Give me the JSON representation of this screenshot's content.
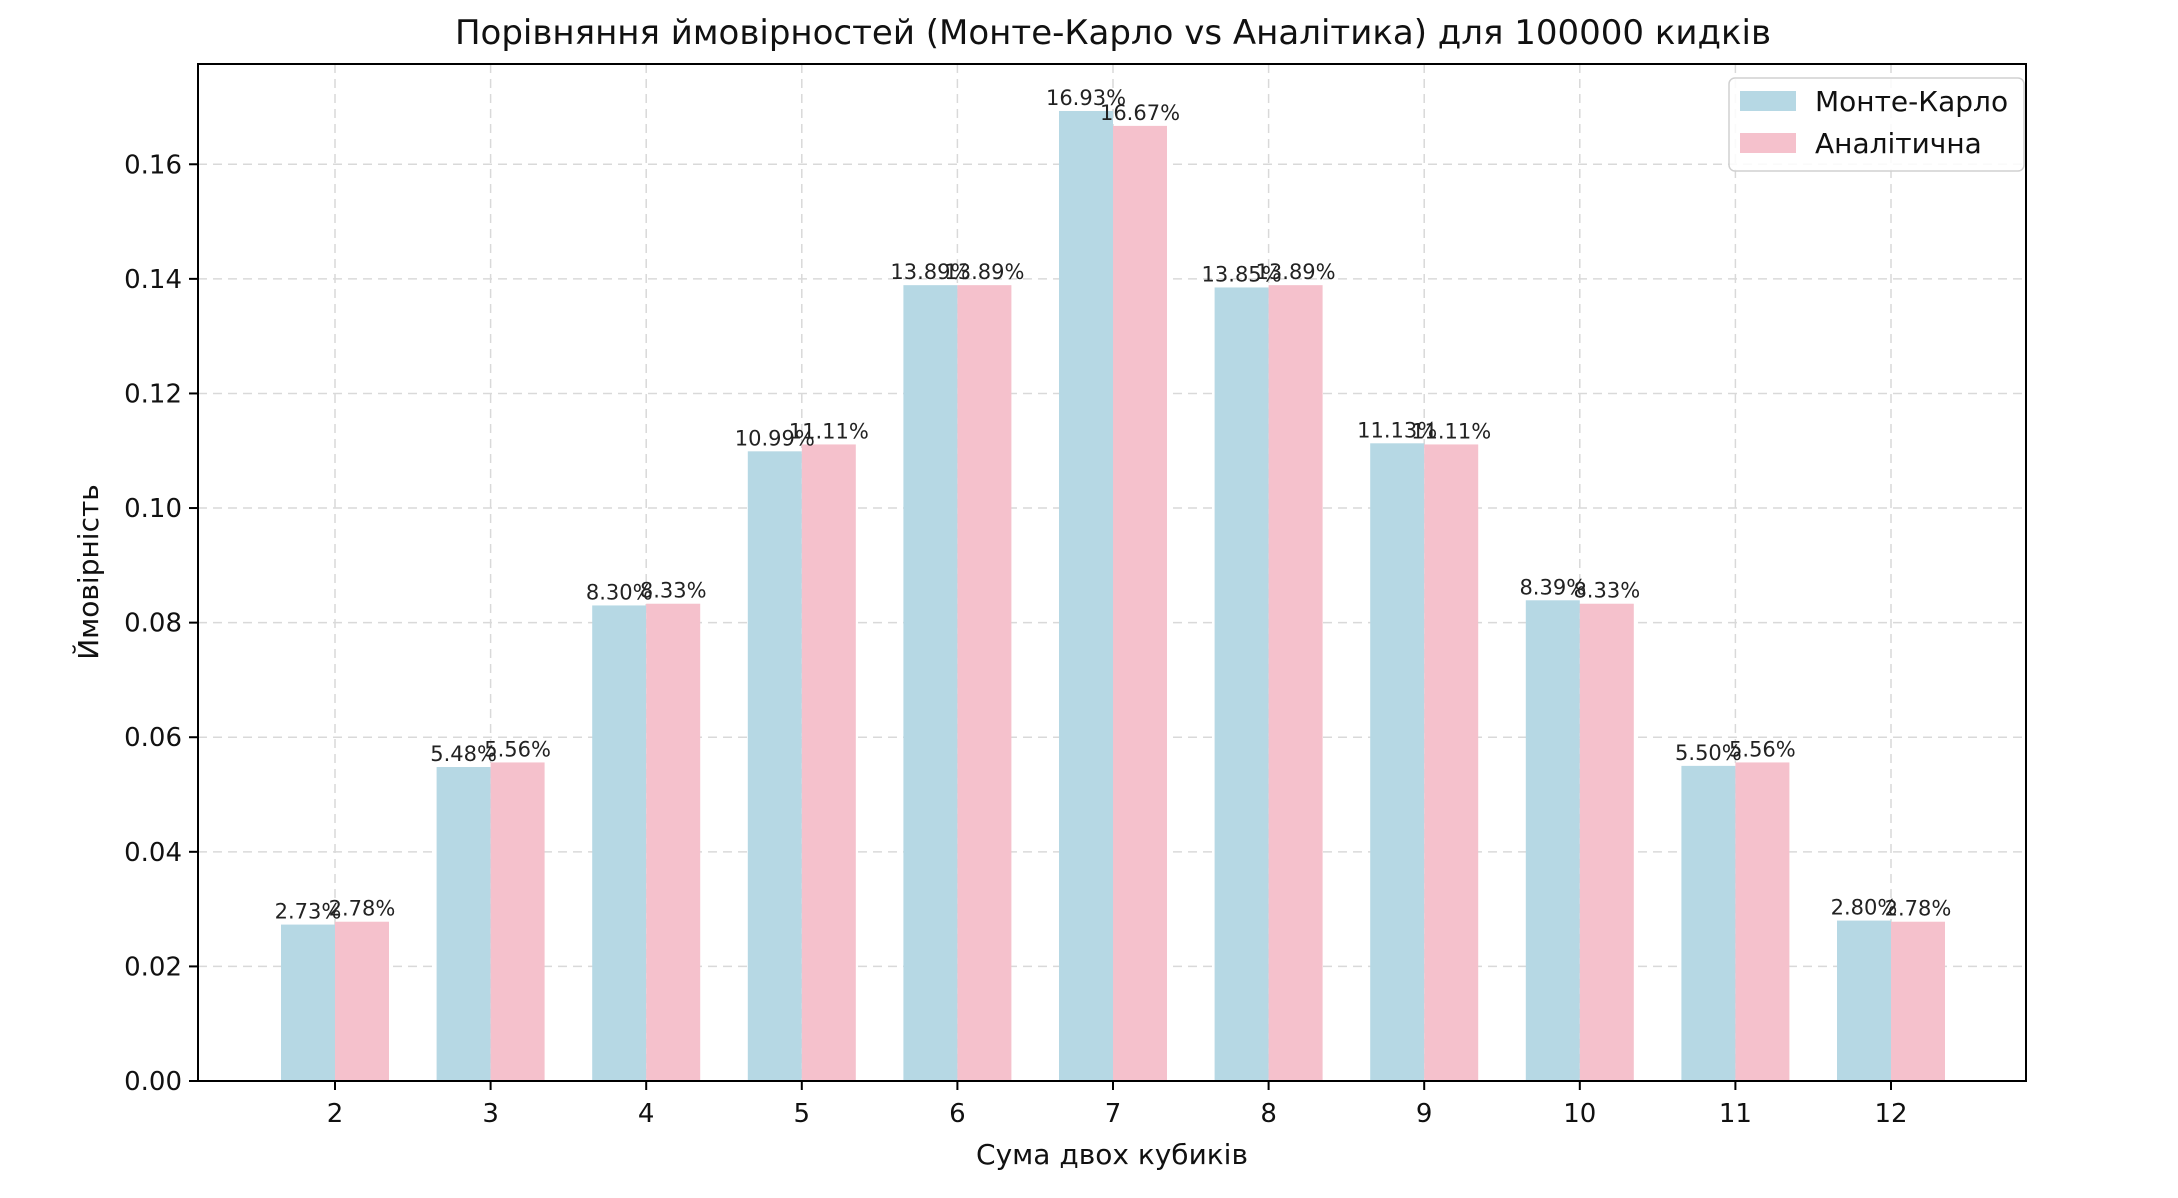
{
  "chart_data": {
    "type": "bar",
    "title": "Порівняння ймовірностей (Монте-Карло vs Аналітика) для 100000 кидків",
    "xlabel": "Сума двох кубиків",
    "ylabel": "Ймовірність",
    "categories": [
      "2",
      "3",
      "4",
      "5",
      "6",
      "7",
      "8",
      "9",
      "10",
      "11",
      "12"
    ],
    "ylim": [
      0,
      0.1775
    ],
    "yticks": [
      "0.00",
      "0.02",
      "0.04",
      "0.06",
      "0.08",
      "0.10",
      "0.12",
      "0.14",
      "0.16"
    ],
    "grid": true,
    "legend_position": "top-right",
    "series": [
      {
        "name": "Монте-Карло",
        "color": "#b6d8e4",
        "values": [
          0.0273,
          0.0548,
          0.083,
          0.1099,
          0.1389,
          0.1693,
          0.1385,
          0.1113,
          0.0839,
          0.055,
          0.028
        ],
        "labels": [
          "2.73%",
          "5.48%",
          "8.30%",
          "10.99%",
          "13.89%",
          "16.93%",
          "13.85%",
          "11.13%",
          "8.39%",
          "5.50%",
          "2.80%"
        ]
      },
      {
        "name": "Аналітична",
        "color": "#f5c1cc",
        "values": [
          0.0278,
          0.0556,
          0.0833,
          0.1111,
          0.1389,
          0.1667,
          0.1389,
          0.1111,
          0.0833,
          0.0556,
          0.0278
        ],
        "labels": [
          "2.78%",
          "5.56%",
          "8.33%",
          "11.11%",
          "13.89%",
          "16.67%",
          "13.89%",
          "11.11%",
          "8.33%",
          "5.56%",
          "2.78%"
        ]
      }
    ]
  }
}
